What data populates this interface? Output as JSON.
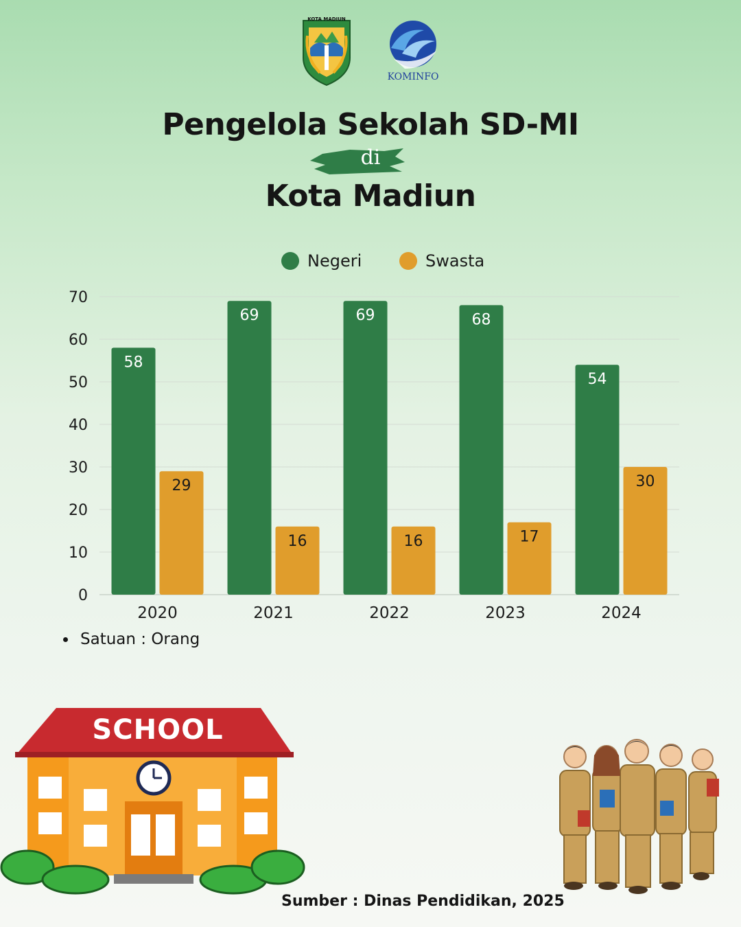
{
  "logos": {
    "left_text": "KOTA MADIUN",
    "right_text": "KOMINFO"
  },
  "header": {
    "title_line1": "Pengelola Sekolah SD-MI",
    "connector": "di",
    "title_line2": "Kota Madiun"
  },
  "chart_data": {
    "type": "bar",
    "categories": [
      "2020",
      "2021",
      "2022",
      "2023",
      "2024"
    ],
    "series": [
      {
        "name": "Negeri",
        "color": "#2f7d47",
        "values": [
          58,
          69,
          69,
          68,
          54
        ]
      },
      {
        "name": "Swasta",
        "color": "#e09d2c",
        "values": [
          29,
          16,
          16,
          17,
          30
        ]
      }
    ],
    "ylim": [
      0,
      70
    ],
    "yticks": [
      0,
      10,
      20,
      30,
      40,
      50,
      60,
      70
    ],
    "grid": true,
    "legend": "top",
    "data_labels": true
  },
  "note": "Satuan : Orang",
  "illustrations": {
    "school_sign": "SCHOOL"
  },
  "source": "Sumber : Dinas Pendidikan, 2025",
  "colors": {
    "negeri": "#2f7d47",
    "swasta": "#e09d2c",
    "title": "#151515",
    "background_top": "#a9dcb0"
  }
}
